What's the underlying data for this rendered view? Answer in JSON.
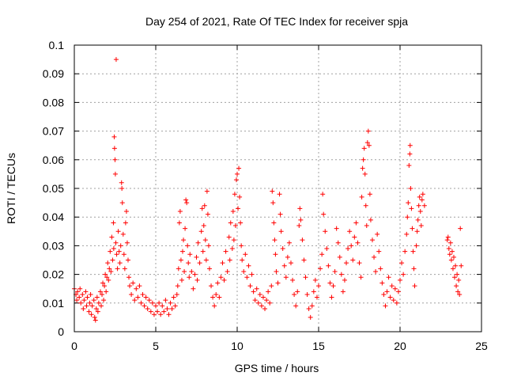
{
  "chart_data": {
    "type": "scatter",
    "title": "Day 254 of 2021, Rate Of TEC Index for receiver spja",
    "xlabel": "GPS time / hours",
    "ylabel": "ROTI / TECUs",
    "xlim": [
      0,
      25
    ],
    "ylim": [
      0,
      0.1
    ],
    "xticks": [
      0,
      5,
      10,
      15,
      20,
      25
    ],
    "xtick_labels": [
      "0",
      "5",
      "10",
      "15",
      "20",
      "25"
    ],
    "yticks": [
      0,
      0.01,
      0.02,
      0.03,
      0.04,
      0.05,
      0.06,
      0.07,
      0.08,
      0.09,
      0.1
    ],
    "ytick_labels": [
      "0",
      "0.01",
      "0.02",
      "0.03",
      "0.04",
      "0.05",
      "0.06",
      "0.07",
      "0.08",
      "0.09",
      "0.1"
    ],
    "grid": true,
    "marker": "plus",
    "color": "#ff0000",
    "series": [
      {
        "points": [
          [
            0.0,
            0.015
          ],
          [
            0.1,
            0.013
          ],
          [
            0.15,
            0.011
          ],
          [
            0.2,
            0.014
          ],
          [
            0.3,
            0.012
          ],
          [
            0.35,
            0.015
          ],
          [
            0.4,
            0.01
          ],
          [
            0.5,
            0.013
          ],
          [
            0.55,
            0.008
          ],
          [
            0.6,
            0.011
          ],
          [
            0.7,
            0.014
          ],
          [
            0.75,
            0.009
          ],
          [
            0.8,
            0.012
          ],
          [
            0.9,
            0.007
          ],
          [
            0.95,
            0.01
          ],
          [
            1.0,
            0.013
          ],
          [
            1.05,
            0.006
          ],
          [
            1.1,
            0.009
          ],
          [
            1.2,
            0.011
          ],
          [
            1.25,
            0.005
          ],
          [
            1.3,
            0.004
          ],
          [
            1.35,
            0.008
          ],
          [
            1.4,
            0.012
          ],
          [
            1.45,
            0.007
          ],
          [
            1.5,
            0.01
          ],
          [
            1.6,
            0.014
          ],
          [
            1.65,
            0.009
          ],
          [
            1.7,
            0.013
          ],
          [
            1.75,
            0.017
          ],
          [
            1.8,
            0.011
          ],
          [
            1.85,
            0.016
          ],
          [
            1.9,
            0.02
          ],
          [
            1.95,
            0.014
          ],
          [
            2.0,
            0.019
          ],
          [
            2.05,
            0.024
          ],
          [
            2.1,
            0.018
          ],
          [
            2.15,
            0.022
          ],
          [
            2.2,
            0.028
          ],
          [
            2.25,
            0.021
          ],
          [
            2.3,
            0.033
          ],
          [
            2.35,
            0.025
          ],
          [
            2.4,
            0.038
          ],
          [
            2.42,
            0.029
          ],
          [
            2.45,
            0.068
          ],
          [
            2.47,
            0.064
          ],
          [
            2.5,
            0.06
          ],
          [
            2.52,
            0.055
          ],
          [
            2.55,
            0.031
          ],
          [
            2.57,
            0.095
          ],
          [
            2.6,
            0.027
          ],
          [
            2.65,
            0.022
          ],
          [
            2.7,
            0.035
          ],
          [
            2.75,
            0.028
          ],
          [
            2.8,
            0.024
          ],
          [
            2.85,
            0.03
          ],
          [
            2.9,
            0.052
          ],
          [
            2.92,
            0.05
          ],
          [
            2.95,
            0.045
          ],
          [
            3.0,
            0.034
          ],
          [
            3.05,
            0.027
          ],
          [
            3.1,
            0.022
          ],
          [
            3.15,
            0.038
          ],
          [
            3.2,
            0.042
          ],
          [
            3.25,
            0.031
          ],
          [
            3.3,
            0.025
          ],
          [
            3.35,
            0.019
          ],
          [
            3.4,
            0.016
          ],
          [
            3.5,
            0.013
          ],
          [
            3.6,
            0.017
          ],
          [
            3.7,
            0.011
          ],
          [
            3.8,
            0.015
          ],
          [
            3.9,
            0.012
          ],
          [
            4.0,
            0.016
          ],
          [
            4.1,
            0.01
          ],
          [
            4.2,
            0.013
          ],
          [
            4.3,
            0.009
          ],
          [
            4.4,
            0.012
          ],
          [
            4.5,
            0.008
          ],
          [
            4.6,
            0.011
          ],
          [
            4.7,
            0.007
          ],
          [
            4.8,
            0.01
          ],
          [
            4.9,
            0.006
          ],
          [
            5.0,
            0.009
          ],
          [
            5.1,
            0.007
          ],
          [
            5.2,
            0.01
          ],
          [
            5.3,
            0.006
          ],
          [
            5.4,
            0.009
          ],
          [
            5.5,
            0.007
          ],
          [
            5.6,
            0.011
          ],
          [
            5.7,
            0.008
          ],
          [
            5.8,
            0.006
          ],
          [
            5.9,
            0.01
          ],
          [
            6.0,
            0.008
          ],
          [
            6.1,
            0.012
          ],
          [
            6.2,
            0.009
          ],
          [
            6.3,
            0.013
          ],
          [
            6.35,
            0.016
          ],
          [
            6.4,
            0.022
          ],
          [
            6.45,
            0.038
          ],
          [
            6.5,
            0.042
          ],
          [
            6.55,
            0.025
          ],
          [
            6.6,
            0.018
          ],
          [
            6.65,
            0.028
          ],
          [
            6.7,
            0.032
          ],
          [
            6.75,
            0.021
          ],
          [
            6.8,
            0.036
          ],
          [
            6.85,
            0.046
          ],
          [
            6.9,
            0.045
          ],
          [
            6.95,
            0.03
          ],
          [
            7.0,
            0.024
          ],
          [
            7.05,
            0.019
          ],
          [
            7.1,
            0.027
          ],
          [
            7.2,
            0.021
          ],
          [
            7.3,
            0.015
          ],
          [
            7.4,
            0.02
          ],
          [
            7.5,
            0.026
          ],
          [
            7.55,
            0.018
          ],
          [
            7.6,
            0.031
          ],
          [
            7.7,
            0.024
          ],
          [
            7.8,
            0.035
          ],
          [
            7.85,
            0.043
          ],
          [
            7.9,
            0.028
          ],
          [
            7.95,
            0.037
          ],
          [
            8.0,
            0.044
          ],
          [
            8.05,
            0.032
          ],
          [
            8.1,
            0.025
          ],
          [
            8.15,
            0.049
          ],
          [
            8.2,
            0.041
          ],
          [
            8.25,
            0.03
          ],
          [
            8.3,
            0.022
          ],
          [
            8.4,
            0.016
          ],
          [
            8.5,
            0.012
          ],
          [
            8.6,
            0.009
          ],
          [
            8.7,
            0.013
          ],
          [
            8.8,
            0.017
          ],
          [
            8.9,
            0.012
          ],
          [
            9.0,
            0.019
          ],
          [
            9.1,
            0.024
          ],
          [
            9.2,
            0.018
          ],
          [
            9.3,
            0.028
          ],
          [
            9.4,
            0.021
          ],
          [
            9.5,
            0.033
          ],
          [
            9.55,
            0.025
          ],
          [
            9.6,
            0.038
          ],
          [
            9.7,
            0.029
          ],
          [
            9.75,
            0.042
          ],
          [
            9.8,
            0.032
          ],
          [
            9.85,
            0.048
          ],
          [
            9.9,
            0.037
          ],
          [
            9.95,
            0.053
          ],
          [
            10.0,
            0.055
          ],
          [
            10.05,
            0.043
          ],
          [
            10.1,
            0.057
          ],
          [
            10.15,
            0.047
          ],
          [
            10.2,
            0.038
          ],
          [
            10.25,
            0.03
          ],
          [
            10.3,
            0.025
          ],
          [
            10.4,
            0.021
          ],
          [
            10.5,
            0.027
          ],
          [
            10.6,
            0.019
          ],
          [
            10.7,
            0.023
          ],
          [
            10.8,
            0.016
          ],
          [
            10.9,
            0.02
          ],
          [
            11.0,
            0.014
          ],
          [
            11.1,
            0.011
          ],
          [
            11.2,
            0.015
          ],
          [
            11.3,
            0.01
          ],
          [
            11.4,
            0.013
          ],
          [
            11.5,
            0.009
          ],
          [
            11.6,
            0.012
          ],
          [
            11.7,
            0.008
          ],
          [
            11.8,
            0.011
          ],
          [
            11.9,
            0.014
          ],
          [
            12.0,
            0.01
          ],
          [
            12.1,
            0.016
          ],
          [
            12.15,
            0.049
          ],
          [
            12.2,
            0.045
          ],
          [
            12.25,
            0.038
          ],
          [
            12.3,
            0.032
          ],
          [
            12.35,
            0.027
          ],
          [
            12.4,
            0.021
          ],
          [
            12.5,
            0.017
          ],
          [
            12.6,
            0.048
          ],
          [
            12.65,
            0.041
          ],
          [
            12.7,
            0.035
          ],
          [
            12.8,
            0.029
          ],
          [
            12.9,
            0.023
          ],
          [
            13.0,
            0.019
          ],
          [
            13.1,
            0.026
          ],
          [
            13.2,
            0.031
          ],
          [
            13.3,
            0.024
          ],
          [
            13.4,
            0.018
          ],
          [
            13.5,
            0.013
          ],
          [
            13.6,
            0.009
          ],
          [
            13.7,
            0.014
          ],
          [
            13.8,
            0.037
          ],
          [
            13.85,
            0.043
          ],
          [
            13.9,
            0.039
          ],
          [
            14.0,
            0.032
          ],
          [
            14.1,
            0.025
          ],
          [
            14.2,
            0.019
          ],
          [
            14.3,
            0.013
          ],
          [
            14.4,
            0.008
          ],
          [
            14.5,
            0.005
          ],
          [
            14.6,
            0.009
          ],
          [
            14.7,
            0.014
          ],
          [
            14.8,
            0.018
          ],
          [
            14.9,
            0.012
          ],
          [
            15.0,
            0.016
          ],
          [
            15.1,
            0.022
          ],
          [
            15.2,
            0.027
          ],
          [
            15.25,
            0.048
          ],
          [
            15.3,
            0.041
          ],
          [
            15.4,
            0.035
          ],
          [
            15.5,
            0.029
          ],
          [
            15.6,
            0.023
          ],
          [
            15.7,
            0.017
          ],
          [
            15.8,
            0.012
          ],
          [
            15.9,
            0.016
          ],
          [
            16.0,
            0.021
          ],
          [
            16.1,
            0.036
          ],
          [
            16.2,
            0.031
          ],
          [
            16.3,
            0.026
          ],
          [
            16.4,
            0.02
          ],
          [
            16.5,
            0.014
          ],
          [
            16.6,
            0.018
          ],
          [
            16.7,
            0.024
          ],
          [
            16.8,
            0.029
          ],
          [
            16.9,
            0.035
          ],
          [
            17.0,
            0.03
          ],
          [
            17.1,
            0.025
          ],
          [
            17.2,
            0.033
          ],
          [
            17.3,
            0.038
          ],
          [
            17.4,
            0.031
          ],
          [
            17.5,
            0.024
          ],
          [
            17.6,
            0.019
          ],
          [
            17.65,
            0.047
          ],
          [
            17.7,
            0.057
          ],
          [
            17.75,
            0.06
          ],
          [
            17.8,
            0.064
          ],
          [
            17.85,
            0.055
          ],
          [
            17.9,
            0.044
          ],
          [
            17.95,
            0.037
          ],
          [
            18.0,
            0.066
          ],
          [
            18.05,
            0.07
          ],
          [
            18.1,
            0.065
          ],
          [
            18.15,
            0.048
          ],
          [
            18.2,
            0.039
          ],
          [
            18.3,
            0.032
          ],
          [
            18.4,
            0.026
          ],
          [
            18.5,
            0.021
          ],
          [
            18.6,
            0.034
          ],
          [
            18.7,
            0.028
          ],
          [
            18.8,
            0.022
          ],
          [
            18.9,
            0.017
          ],
          [
            19.0,
            0.013
          ],
          [
            19.1,
            0.009
          ],
          [
            19.2,
            0.014
          ],
          [
            19.3,
            0.019
          ],
          [
            19.4,
            0.012
          ],
          [
            19.5,
            0.016
          ],
          [
            19.6,
            0.011
          ],
          [
            19.7,
            0.015
          ],
          [
            19.8,
            0.01
          ],
          [
            19.9,
            0.014
          ],
          [
            20.0,
            0.018
          ],
          [
            20.1,
            0.024
          ],
          [
            20.2,
            0.02
          ],
          [
            20.3,
            0.028
          ],
          [
            20.4,
            0.034
          ],
          [
            20.45,
            0.04
          ],
          [
            20.5,
            0.045
          ],
          [
            20.55,
            0.058
          ],
          [
            20.6,
            0.062
          ],
          [
            20.62,
            0.065
          ],
          [
            20.65,
            0.05
          ],
          [
            20.7,
            0.043
          ],
          [
            20.75,
            0.036
          ],
          [
            20.8,
            0.028
          ],
          [
            20.85,
            0.022
          ],
          [
            20.9,
            0.016
          ],
          [
            21.0,
            0.03
          ],
          [
            21.05,
            0.035
          ],
          [
            21.1,
            0.039
          ],
          [
            21.15,
            0.044
          ],
          [
            21.2,
            0.047
          ],
          [
            21.25,
            0.042
          ],
          [
            21.3,
            0.037
          ],
          [
            21.35,
            0.046
          ],
          [
            21.4,
            0.048
          ],
          [
            21.5,
            0.044
          ],
          [
            22.9,
            0.032
          ],
          [
            22.95,
            0.033
          ],
          [
            23.0,
            0.029
          ],
          [
            23.05,
            0.027
          ],
          [
            23.1,
            0.031
          ],
          [
            23.15,
            0.025
          ],
          [
            23.2,
            0.028
          ],
          [
            23.25,
            0.022
          ],
          [
            23.3,
            0.026
          ],
          [
            23.35,
            0.019
          ],
          [
            23.4,
            0.023
          ],
          [
            23.45,
            0.016
          ],
          [
            23.5,
            0.02
          ],
          [
            23.55,
            0.014
          ],
          [
            23.6,
            0.018
          ],
          [
            23.65,
            0.013
          ],
          [
            23.7,
            0.036
          ],
          [
            23.75,
            0.023
          ]
        ]
      }
    ]
  }
}
